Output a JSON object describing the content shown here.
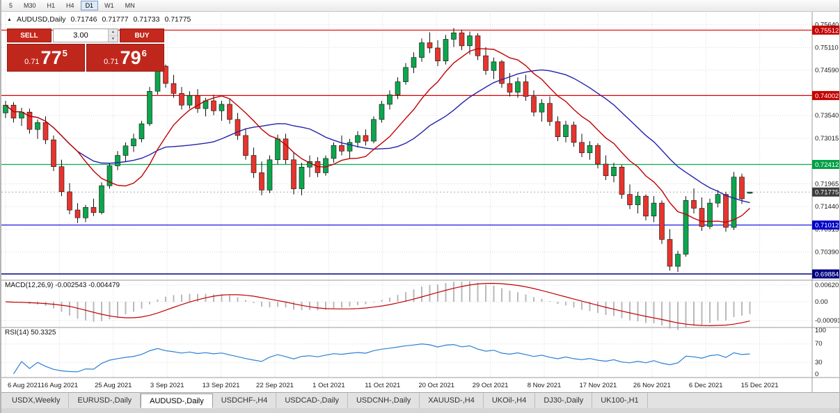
{
  "toolbar": {
    "timeframes": [
      {
        "label": "5",
        "active": false
      },
      {
        "label": "M30",
        "active": false
      },
      {
        "label": "H1",
        "active": false
      },
      {
        "label": "H4",
        "active": false
      },
      {
        "label": "D1",
        "active": true
      },
      {
        "label": "W1",
        "active": false
      },
      {
        "label": "MN",
        "active": false
      }
    ]
  },
  "chart": {
    "symbol_label": "AUDUSD,Daily",
    "open": "0.71746",
    "high": "0.71777",
    "low": "0.71733",
    "close": "0.71775"
  },
  "trade_panel": {
    "sell_label": "SELL",
    "buy_label": "BUY",
    "volume": "3.00",
    "sell_price_prefix": "0.71",
    "sell_price_big": "77",
    "sell_price_sup": "5",
    "buy_price_prefix": "0.71",
    "buy_price_big": "79",
    "buy_price_sup": "6"
  },
  "macd_panel": {
    "label": "MACD(12,26,9) -0.002543 -0.004479",
    "axis_labels": [
      "0.006201",
      "0.00",
      "-0.000919"
    ]
  },
  "rsi_panel": {
    "label": "RSI(14) 50.3325",
    "axis_labels": [
      "100",
      "70",
      "30",
      "0"
    ]
  },
  "tabs": [
    {
      "label": "USDX,Weekly",
      "active": false
    },
    {
      "label": "EURUSD-,Daily",
      "active": false
    },
    {
      "label": "AUDUSD-,Daily",
      "active": true
    },
    {
      "label": "USDCHF-,H4",
      "active": false
    },
    {
      "label": "USDCAD-,Daily",
      "active": false
    },
    {
      "label": "USDCNH-,Daily",
      "active": false
    },
    {
      "label": "XAUUSD-,H4",
      "active": false
    },
    {
      "label": "UKOil-,H4",
      "active": false
    },
    {
      "label": "DJ30-,Daily",
      "active": false
    },
    {
      "label": "UK100-,H1",
      "active": false
    }
  ],
  "chart_data": {
    "type": "candlestick",
    "symbol": "AUDUSD",
    "timeframe": "Daily",
    "y_range": [
      0.6974,
      0.7595
    ],
    "time_labels": [
      "6 Aug 2021",
      "16 Aug 2021",
      "25 Aug 2021",
      "3 Sep 2021",
      "13 Sep 2021",
      "22 Sep 2021",
      "1 Oct 2021",
      "11 Oct 2021",
      "20 Oct 2021",
      "29 Oct 2021",
      "8 Nov 2021",
      "17 Nov 2021",
      "26 Nov 2021",
      "6 Dec 2021",
      "15 Dec 2021"
    ],
    "price_axis_labels": [
      0.7564,
      0.7511,
      0.7459,
      0.7354,
      0.73015,
      0.71965,
      0.7144,
      0.70915,
      0.7039
    ],
    "hlines": [
      {
        "value": 0.75512,
        "color": "#dd0000",
        "label_bg": "#c40000",
        "width": 1.2
      },
      {
        "value": 0.74002,
        "color": "#dd0000",
        "label_bg": "#c40000",
        "width": 1.2
      },
      {
        "value": 0.72412,
        "color": "#00b050",
        "label_bg": "#00a045",
        "width": 1.2
      },
      {
        "value": 0.71012,
        "color": "#0000e0",
        "label_bg": "#0000c8",
        "width": 1.2
      },
      {
        "value": 0.69884,
        "color": "#000080",
        "label_bg": "#000080",
        "width": 1.6
      }
    ],
    "current_price": {
      "value": 0.71775,
      "label_bg": "#3c3c3c"
    },
    "ma_periods": {
      "fast": 10,
      "slow": 21
    },
    "macd_params": [
      12,
      26,
      9
    ],
    "rsi_period": 14,
    "colors": {
      "up": "#0ea54e",
      "down": "#e5352e",
      "wick": "#111111",
      "ma_fast": "#c00000",
      "ma_slow": "#2222aa",
      "macd_hist": "#b9b9b9",
      "macd_signal": "#c00000",
      "rsi": "#2a7fd4",
      "grid": "#d9d9d9"
    },
    "candles": [
      [
        0.736,
        0.7388,
        0.7348,
        0.7378
      ],
      [
        0.7378,
        0.7385,
        0.7338,
        0.7348
      ],
      [
        0.7348,
        0.7372,
        0.733,
        0.7362
      ],
      [
        0.7362,
        0.737,
        0.7312,
        0.7322
      ],
      [
        0.7322,
        0.7345,
        0.73,
        0.7338
      ],
      [
        0.7338,
        0.7352,
        0.7288,
        0.7298
      ],
      [
        0.7298,
        0.7308,
        0.7226,
        0.7236
      ],
      [
        0.7236,
        0.7252,
        0.7168,
        0.7178
      ],
      [
        0.7178,
        0.7198,
        0.7126,
        0.7136
      ],
      [
        0.7136,
        0.7152,
        0.7106,
        0.7118
      ],
      [
        0.7118,
        0.7148,
        0.7108,
        0.7142
      ],
      [
        0.7142,
        0.7162,
        0.7122,
        0.713
      ],
      [
        0.713,
        0.72,
        0.7126,
        0.7192
      ],
      [
        0.7192,
        0.7245,
        0.7185,
        0.7238
      ],
      [
        0.7238,
        0.7272,
        0.7228,
        0.7262
      ],
      [
        0.7262,
        0.7292,
        0.7248,
        0.7284
      ],
      [
        0.7284,
        0.7312,
        0.727,
        0.73
      ],
      [
        0.73,
        0.7342,
        0.7292,
        0.7335
      ],
      [
        0.7335,
        0.742,
        0.733,
        0.741
      ],
      [
        0.741,
        0.7478,
        0.7402,
        0.7468
      ],
      [
        0.7468,
        0.7472,
        0.7418,
        0.7428
      ],
      [
        0.7428,
        0.7448,
        0.7395,
        0.7405
      ],
      [
        0.7405,
        0.742,
        0.7368,
        0.7378
      ],
      [
        0.7378,
        0.741,
        0.737,
        0.74
      ],
      [
        0.74,
        0.7415,
        0.736,
        0.737
      ],
      [
        0.737,
        0.7395,
        0.7352,
        0.7388
      ],
      [
        0.7388,
        0.7402,
        0.7355,
        0.7365
      ],
      [
        0.7365,
        0.7388,
        0.7342,
        0.738
      ],
      [
        0.738,
        0.7392,
        0.7335,
        0.7345
      ],
      [
        0.7345,
        0.736,
        0.7298,
        0.7308
      ],
      [
        0.7308,
        0.7322,
        0.7252,
        0.7262
      ],
      [
        0.7262,
        0.728,
        0.721,
        0.7222
      ],
      [
        0.7222,
        0.7248,
        0.717,
        0.7182
      ],
      [
        0.7182,
        0.7262,
        0.7175,
        0.7252
      ],
      [
        0.7252,
        0.731,
        0.7242,
        0.73
      ],
      [
        0.73,
        0.7312,
        0.7242,
        0.7252
      ],
      [
        0.7252,
        0.7268,
        0.7172,
        0.7185
      ],
      [
        0.7185,
        0.7245,
        0.717,
        0.7235
      ],
      [
        0.7235,
        0.7262,
        0.7212,
        0.7248
      ],
      [
        0.7248,
        0.7258,
        0.7212,
        0.7222
      ],
      [
        0.7222,
        0.7262,
        0.7215,
        0.7255
      ],
      [
        0.7255,
        0.7292,
        0.7245,
        0.7285
      ],
      [
        0.7285,
        0.7308,
        0.7262,
        0.7272
      ],
      [
        0.7272,
        0.73,
        0.7255,
        0.7292
      ],
      [
        0.7292,
        0.7318,
        0.728,
        0.7308
      ],
      [
        0.7308,
        0.7322,
        0.7285,
        0.7295
      ],
      [
        0.7295,
        0.7352,
        0.729,
        0.7345
      ],
      [
        0.7345,
        0.7388,
        0.7338,
        0.738
      ],
      [
        0.738,
        0.7412,
        0.7368,
        0.7402
      ],
      [
        0.7402,
        0.7442,
        0.7392,
        0.7432
      ],
      [
        0.7432,
        0.7475,
        0.7425,
        0.7465
      ],
      [
        0.7465,
        0.75,
        0.7452,
        0.7488
      ],
      [
        0.7488,
        0.7532,
        0.7478,
        0.7522
      ],
      [
        0.7522,
        0.7546,
        0.7498,
        0.751
      ],
      [
        0.751,
        0.7528,
        0.7468,
        0.748
      ],
      [
        0.748,
        0.754,
        0.7472,
        0.753
      ],
      [
        0.753,
        0.7556,
        0.7512,
        0.7545
      ],
      [
        0.7545,
        0.7552,
        0.7505,
        0.7515
      ],
      [
        0.7515,
        0.7548,
        0.7495,
        0.7538
      ],
      [
        0.7538,
        0.7544,
        0.7482,
        0.7492
      ],
      [
        0.7492,
        0.7512,
        0.7448,
        0.7458
      ],
      [
        0.7458,
        0.7488,
        0.7438,
        0.7478
      ],
      [
        0.7478,
        0.7482,
        0.7418,
        0.7428
      ],
      [
        0.7428,
        0.7452,
        0.7398,
        0.7408
      ],
      [
        0.7408,
        0.7442,
        0.7395,
        0.7432
      ],
      [
        0.7432,
        0.7448,
        0.7388,
        0.7398
      ],
      [
        0.7398,
        0.7412,
        0.7352,
        0.7362
      ],
      [
        0.7362,
        0.7392,
        0.734,
        0.7382
      ],
      [
        0.7382,
        0.7398,
        0.733,
        0.734
      ],
      [
        0.734,
        0.7352,
        0.7295,
        0.7305
      ],
      [
        0.7305,
        0.7342,
        0.7292,
        0.7332
      ],
      [
        0.7332,
        0.734,
        0.7282,
        0.7292
      ],
      [
        0.7292,
        0.7312,
        0.7258,
        0.7268
      ],
      [
        0.7268,
        0.7295,
        0.7252,
        0.7285
      ],
      [
        0.7285,
        0.729,
        0.7232,
        0.7242
      ],
      [
        0.7242,
        0.7262,
        0.7205,
        0.7215
      ],
      [
        0.7215,
        0.7245,
        0.72,
        0.7235
      ],
      [
        0.7235,
        0.724,
        0.7162,
        0.7172
      ],
      [
        0.7172,
        0.7195,
        0.7138,
        0.7148
      ],
      [
        0.7148,
        0.7178,
        0.7128,
        0.7168
      ],
      [
        0.7168,
        0.7172,
        0.7112,
        0.7122
      ],
      [
        0.7122,
        0.7168,
        0.7108,
        0.7152
      ],
      [
        0.7152,
        0.7158,
        0.7058,
        0.7068
      ],
      [
        0.7068,
        0.7092,
        0.6996,
        0.7006
      ],
      [
        0.7006,
        0.7042,
        0.6993,
        0.7034
      ],
      [
        0.7034,
        0.7168,
        0.7028,
        0.7158
      ],
      [
        0.7158,
        0.7186,
        0.7128,
        0.714
      ],
      [
        0.714,
        0.7165,
        0.7088,
        0.7098
      ],
      [
        0.7098,
        0.7162,
        0.7092,
        0.7152
      ],
      [
        0.7152,
        0.7182,
        0.7142,
        0.7172
      ],
      [
        0.7172,
        0.7178,
        0.7086,
        0.7096
      ],
      [
        0.7096,
        0.7224,
        0.709,
        0.7212
      ],
      [
        0.7212,
        0.722,
        0.715,
        0.7162
      ],
      [
        0.71746,
        0.71777,
        0.71733,
        0.71775
      ]
    ]
  }
}
